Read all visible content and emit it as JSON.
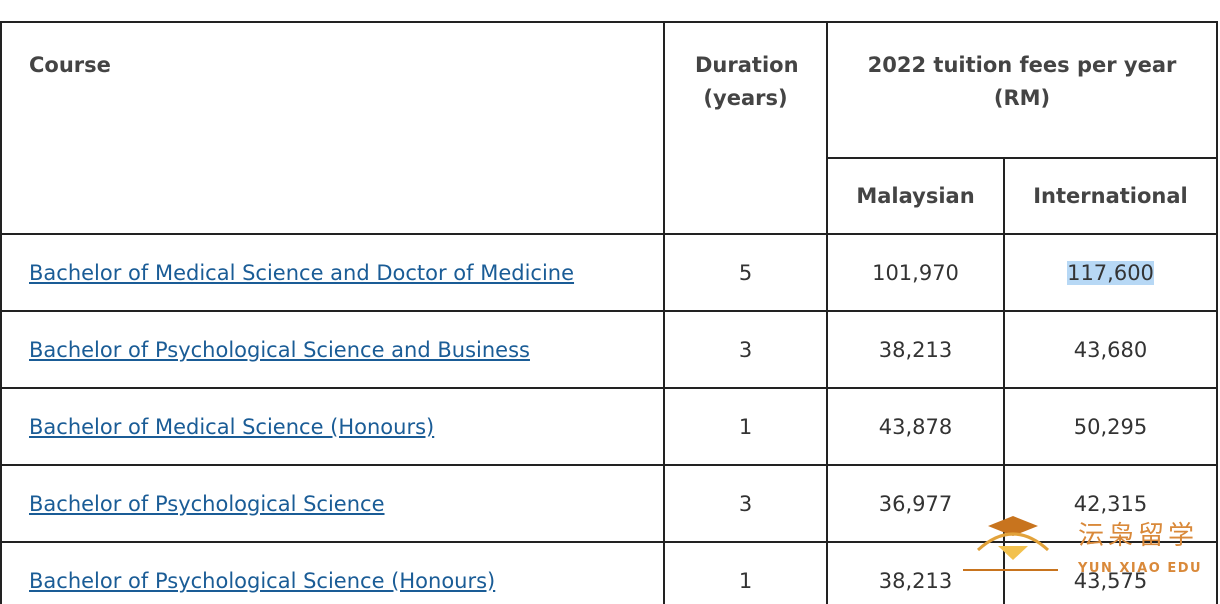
{
  "table": {
    "headers": {
      "course": "Course",
      "duration": "Duration (years)",
      "fees": "2022 tuition fees per year (RM)",
      "malaysian": "Malaysian",
      "international": "International"
    },
    "rows": [
      [
        "Bachelor of Medical Science and Doctor of Medicine",
        "5",
        "101,970",
        "117,600"
      ],
      [
        "Bachelor of Psychological Science and Business",
        "3",
        "38,213",
        "43,680"
      ],
      [
        "Bachelor of Medical Science (Honours)",
        "1",
        "43,878",
        "50,295"
      ],
      [
        "Bachelor of Psychological Science",
        "3",
        "36,977",
        "42,315"
      ],
      [
        "Bachelor of Psychological Science (Honours)",
        "1",
        "38,213",
        "43,575"
      ]
    ]
  },
  "watermark": {
    "name": "沄枭留学",
    "subtitle": "YUN XIAO EDU"
  }
}
